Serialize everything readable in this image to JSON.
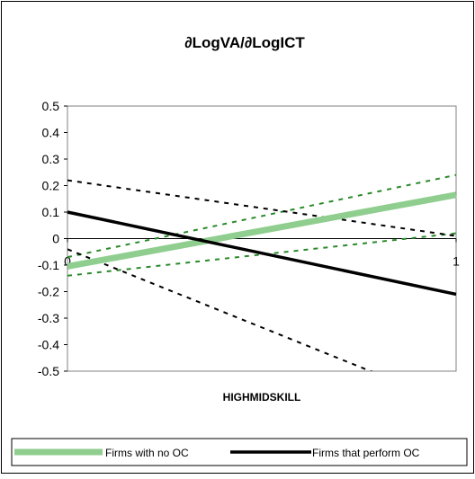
{
  "chart_data": {
    "type": "line",
    "title": "∂LogVA/∂LogICT",
    "xlabel": "HIGHMIDSKILL",
    "ylabel": "",
    "x": [
      0,
      1
    ],
    "xticks": [
      "0",
      "1"
    ],
    "yticks": [
      "0.5",
      "0.4",
      "0.3",
      "0.2",
      "0.1",
      "0",
      "-0.1",
      "-0.2",
      "-0.3",
      "-0.4",
      "-0.5"
    ],
    "ylim": [
      -0.5,
      0.5
    ],
    "xlim": [
      0,
      1
    ],
    "grid": false,
    "legend": "bottom",
    "series": [
      {
        "name": "Firms with no OC",
        "values": [
          -0.105,
          0.165
        ],
        "color": "#8fce8f",
        "style": "solid-thick"
      },
      {
        "name": "Firms that perform OC",
        "values": [
          0.1,
          -0.21
        ],
        "color": "#000000",
        "style": "solid"
      }
    ],
    "bands": [
      {
        "of": "Firms with no OC",
        "color": "#2a8a2a",
        "lower": [
          -0.14,
          0.02
        ],
        "upper": [
          -0.07,
          0.24
        ]
      },
      {
        "of": "Firms that perform OC",
        "color": "#000000",
        "lower": [
          -0.04,
          -0.63
        ],
        "upper": [
          0.22,
          0.01
        ]
      }
    ]
  }
}
